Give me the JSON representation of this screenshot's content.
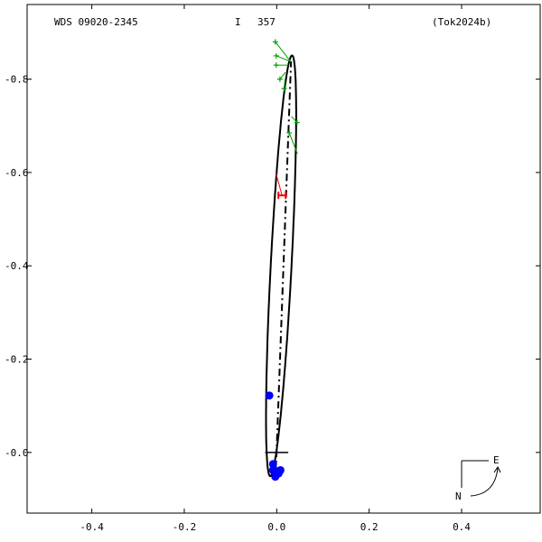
{
  "header": {
    "wds": "WDS 09020-2345",
    "ident": "I",
    "number": "357",
    "reference": "(Tok2024b)"
  },
  "colors": {
    "orbit": "#000000",
    "green_obs": "#00a000",
    "red_obs": "#ff0000",
    "blue_obs": "#0000ff"
  },
  "compass": {
    "east": "E",
    "north": "N"
  },
  "chart_data": {
    "type": "scatter",
    "xlim": [
      -0.54,
      0.57
    ],
    "ylim": [
      -0.13,
      0.96
    ],
    "x_ticks": [
      {
        "value": -0.4,
        "label": "-0.4"
      },
      {
        "value": -0.2,
        "label": "-0.2"
      },
      {
        "value": 0.0,
        "label": "0.0"
      },
      {
        "value": 0.2,
        "label": "0.2"
      },
      {
        "value": 0.4,
        "label": "0.4"
      }
    ],
    "y_ticks": [
      {
        "value": 0.8,
        "label": "-0.8"
      },
      {
        "value": 0.6,
        "label": "-0.6"
      },
      {
        "value": 0.4,
        "label": "-0.4"
      },
      {
        "value": 0.2,
        "label": "-0.2"
      },
      {
        "value": 0.0,
        "label": "-0.0"
      }
    ],
    "orbit": {
      "center": [
        0.0095,
        0.4
      ],
      "semi_major": 0.4515,
      "semi_minor": 0.0225,
      "angle_deg": 87.0
    },
    "line_of_nodes": [
      [
        -0.002,
        -0.045
      ],
      [
        0.031,
        0.838
      ]
    ],
    "primary_marker_halfwidth": 0.025,
    "green_observations": [
      {
        "obs": [
          -0.003,
          0.88
        ],
        "orbit": [
          0.03,
          0.838
        ]
      },
      {
        "obs": [
          -0.001,
          0.85
        ],
        "orbit": [
          0.03,
          0.838
        ]
      },
      {
        "obs": [
          -0.001,
          0.83
        ],
        "orbit": [
          0.025,
          0.83
        ]
      },
      {
        "obs": [
          0.007,
          0.8
        ],
        "orbit": [
          0.019,
          0.815
        ]
      },
      {
        "obs": [
          0.016,
          0.78
        ],
        "orbit": [
          0.018,
          0.8
        ]
      },
      {
        "obs": [
          0.044,
          0.707
        ],
        "orbit": [
          0.032,
          0.72
        ]
      },
      {
        "obs": [
          0.027,
          0.685
        ],
        "orbit": [
          0.045,
          0.64
        ]
      }
    ],
    "red_observations": [
      {
        "obs": [
          0.0115,
          0.551
        ],
        "orbit": [
          -0.002,
          0.6
        ]
      }
    ],
    "blue_observations": [
      [
        -0.016,
        0.122
      ],
      [
        -0.008,
        -0.025
      ],
      [
        -0.008,
        -0.038
      ],
      [
        0.008,
        -0.038
      ],
      [
        0.004,
        -0.045
      ],
      [
        -0.003,
        -0.052
      ]
    ]
  }
}
